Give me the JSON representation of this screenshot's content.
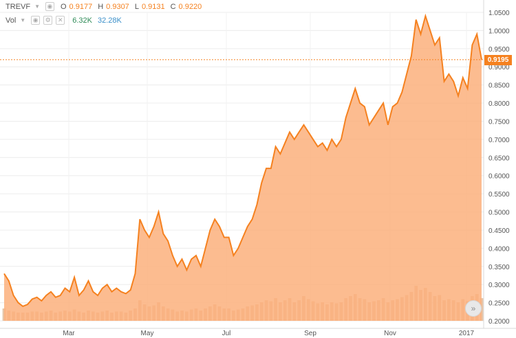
{
  "legend": {
    "symbol": "TREVF",
    "open_label": "O",
    "open": "0.9177",
    "high_label": "H",
    "high": "0.9307",
    "low_label": "L",
    "low": "0.9131",
    "close_label": "C",
    "close": "0.9220",
    "vol_label": "Vol",
    "vol_value": "6.32K",
    "vol_ma": "32.28K"
  },
  "last_price": "0.9195",
  "icons": [
    "eye-icon",
    "settings-icon",
    "close-icon",
    "scroll-forward-icon"
  ],
  "colors": {
    "line": "#f5811f",
    "area": "#fbb07c",
    "volume": "#e7c4a6",
    "price_label": "#f5811f",
    "grid": "#ececec"
  },
  "chart_data": {
    "type": "area",
    "title": "",
    "xlabel": "",
    "ylabel": "",
    "ylim": [
      0.2,
      1.05
    ],
    "y_ticks": [
      "1.0500",
      "1.0000",
      "0.9500",
      "0.9000",
      "0.8500",
      "0.8000",
      "0.7500",
      "0.7000",
      "0.6500",
      "0.6000",
      "0.5500",
      "0.5000",
      "0.4500",
      "0.4000",
      "0.3500",
      "0.3000",
      "0.2500",
      "0.2000"
    ],
    "x_ticks": [
      "Mar",
      "May",
      "Jul",
      "Sep",
      "Nov",
      "2017"
    ],
    "series": [
      {
        "values": [
          0.33,
          0.31,
          0.27,
          0.25,
          0.24,
          0.245,
          0.26,
          0.265,
          0.255,
          0.27,
          0.28,
          0.265,
          0.27,
          0.29,
          0.28,
          0.32,
          0.27,
          0.285,
          0.31,
          0.28,
          0.27,
          0.29,
          0.3,
          0.28,
          0.29,
          0.28,
          0.275,
          0.285,
          0.33,
          0.48,
          0.45,
          0.43,
          0.46,
          0.5,
          0.44,
          0.42,
          0.38,
          0.35,
          0.37,
          0.34,
          0.37,
          0.38,
          0.35,
          0.4,
          0.45,
          0.48,
          0.46,
          0.43,
          0.43,
          0.38,
          0.4,
          0.43,
          0.46,
          0.48,
          0.52,
          0.58,
          0.62,
          0.62,
          0.68,
          0.66,
          0.69,
          0.72,
          0.7,
          0.72,
          0.74,
          0.72,
          0.7,
          0.68,
          0.69,
          0.67,
          0.7,
          0.68,
          0.7,
          0.76,
          0.8,
          0.84,
          0.8,
          0.79,
          0.74,
          0.76,
          0.78,
          0.8,
          0.74,
          0.79,
          0.8,
          0.83,
          0.88,
          0.93,
          1.03,
          0.99,
          1.04,
          1.0,
          0.96,
          0.98,
          0.86,
          0.88,
          0.86,
          0.82,
          0.87,
          0.84,
          0.96,
          0.99,
          0.92
        ]
      }
    ],
    "volume": [
      12,
      10,
      9,
      8,
      8,
      8,
      9,
      9,
      8,
      9,
      10,
      8,
      9,
      10,
      9,
      11,
      9,
      8,
      10,
      9,
      8,
      9,
      10,
      8,
      9,
      9,
      8,
      10,
      12,
      20,
      16,
      14,
      15,
      18,
      14,
      12,
      11,
      9,
      10,
      9,
      11,
      12,
      10,
      12,
      14,
      16,
      14,
      12,
      12,
      10,
      11,
      12,
      14,
      15,
      16,
      18,
      20,
      19,
      22,
      18,
      20,
      22,
      18,
      20,
      24,
      21,
      19,
      17,
      18,
      16,
      18,
      17,
      18,
      22,
      24,
      26,
      22,
      21,
      18,
      19,
      20,
      22,
      18,
      20,
      21,
      23,
      25,
      28,
      34,
      30,
      32,
      28,
      24,
      25,
      20,
      21,
      20,
      18,
      21,
      19,
      24,
      26,
      22
    ]
  }
}
